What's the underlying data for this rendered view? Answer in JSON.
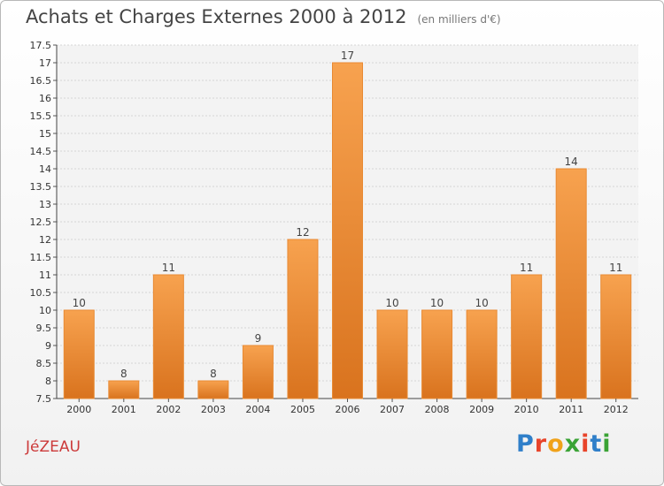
{
  "chart_data": {
    "type": "bar",
    "title": "Achats et Charges Externes 2000 à 2012",
    "subtitle": "(en milliers d'€)",
    "categories": [
      "2000",
      "2001",
      "2002",
      "2003",
      "2004",
      "2005",
      "2006",
      "2007",
      "2008",
      "2009",
      "2010",
      "2011",
      "2012"
    ],
    "values": [
      10,
      8,
      11,
      8,
      9,
      12,
      17,
      10,
      10,
      10,
      11,
      14,
      11
    ],
    "ylim": [
      7.5,
      17.5
    ],
    "yticks": [
      "7.5",
      "8",
      "8.5",
      "9",
      "9.5",
      "10",
      "10.5",
      "11",
      "11.5",
      "12",
      "12.5",
      "13",
      "13.5",
      "14",
      "14.5",
      "15",
      "15.5",
      "16",
      "16.5",
      "17",
      "17.5"
    ],
    "grid": true,
    "bar_color": "#f0913a",
    "xlabel": "",
    "ylabel": ""
  },
  "commune": "JéZEAU",
  "logo": {
    "letters": [
      "P",
      "r",
      "o",
      "x",
      "i",
      "t",
      "i"
    ],
    "colors": [
      "#2f7fc9",
      "#e8442a",
      "#f0a21a",
      "#3aa335",
      "#e8442a",
      "#2f7fc9",
      "#3aa335"
    ]
  }
}
